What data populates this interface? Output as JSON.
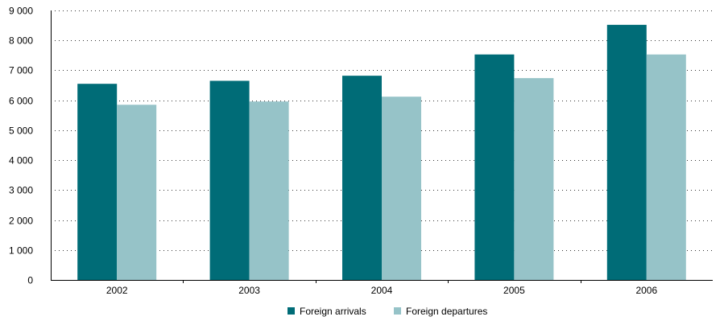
{
  "chart_data": {
    "type": "bar",
    "categories": [
      "2002",
      "2003",
      "2004",
      "2005",
      "2006"
    ],
    "series": [
      {
        "name": "Foreign arrivals",
        "color": "#006c77",
        "values": [
          6550,
          6650,
          6820,
          7530,
          8520
        ]
      },
      {
        "name": "Foreign departures",
        "color": "#96c3c8",
        "values": [
          5850,
          5960,
          6120,
          6740,
          7530
        ]
      }
    ],
    "yticks": [
      {
        "value": 0,
        "label": "0"
      },
      {
        "value": 1000,
        "label": "1 000"
      },
      {
        "value": 2000,
        "label": "2 000"
      },
      {
        "value": 3000,
        "label": "3 000"
      },
      {
        "value": 4000,
        "label": "4 000"
      },
      {
        "value": 5000,
        "label": "5 000"
      },
      {
        "value": 6000,
        "label": "6 000"
      },
      {
        "value": 7000,
        "label": "7 000"
      },
      {
        "value": 8000,
        "label": "8 000"
      },
      {
        "value": 9000,
        "label": "9 000"
      }
    ],
    "ylim": [
      0,
      9000
    ],
    "grid": "horizontal dotted",
    "legend_position": "bottom-center",
    "title": "",
    "xlabel": "",
    "ylabel": ""
  }
}
